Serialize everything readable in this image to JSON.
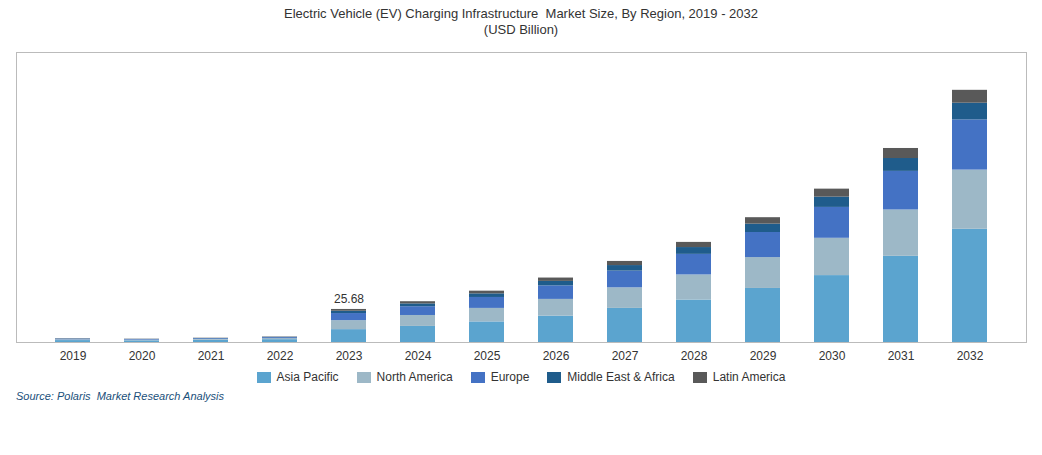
{
  "chart_data": {
    "type": "bar",
    "stacked": true,
    "title": "Electric Vehicle (EV) Charging Infrastructure  Market Size, By Region, 2019 - 2032",
    "subtitle": "(USD Billion)",
    "source": "Source: Polaris  Market Research Analysis",
    "categories": [
      "2019",
      "2020",
      "2021",
      "2022",
      "2023",
      "2024",
      "2025",
      "2026",
      "2027",
      "2028",
      "2029",
      "2030",
      "2031",
      "2032"
    ],
    "series": [
      {
        "name": "Asia Pacific",
        "color": "#5BA4CF",
        "values": [
          1.5,
          1.3,
          1.7,
          2.2,
          10.0,
          12.5,
          16.0,
          20.5,
          26.5,
          33.0,
          42.0,
          52.0,
          67.0,
          88.0
        ]
      },
      {
        "name": "North America",
        "color": "#9DB8C7",
        "values": [
          0.6,
          0.5,
          0.65,
          0.85,
          7.0,
          8.5,
          10.5,
          13.0,
          16.0,
          19.5,
          24.0,
          29.0,
          36.0,
          46.0
        ]
      },
      {
        "name": "Europe",
        "color": "#4472C4",
        "values": [
          0.5,
          0.45,
          0.55,
          0.7,
          5.5,
          6.8,
          8.5,
          10.5,
          13.0,
          16.0,
          19.5,
          24.0,
          30.0,
          39.0
        ]
      },
      {
        "name": "Middle East & Africa",
        "color": "#1F5C8B",
        "values": [
          0.2,
          0.18,
          0.22,
          0.28,
          1.8,
          2.2,
          2.8,
          3.5,
          4.3,
          5.3,
          6.5,
          8.0,
          10.0,
          13.0
        ]
      },
      {
        "name": "Latin America",
        "color": "#595959",
        "values": [
          0.18,
          0.16,
          0.2,
          0.25,
          1.38,
          1.7,
          2.1,
          2.6,
          3.2,
          4.0,
          5.0,
          6.2,
          7.8,
          10.0
        ]
      }
    ],
    "annotations": [
      {
        "text": "25.68",
        "x": "2023",
        "y": 25.68
      }
    ],
    "ylim": [
      0,
      225.4
    ],
    "tick_labels": "x",
    "grid": false,
    "legend": "bottom"
  }
}
